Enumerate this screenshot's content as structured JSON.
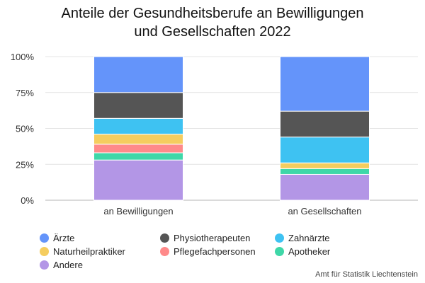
{
  "title_lines": [
    "Anteile der Gesundheitsberufe an Bewilligungen",
    "und Gesellschaften 2022"
  ],
  "source": "Amt für Statistik Liechtenstein",
  "chart_data": {
    "type": "bar",
    "stacked": true,
    "categories": [
      "an Bewilligungen",
      "an Gesellschaften"
    ],
    "ylim": [
      0,
      100
    ],
    "yticks": [
      0,
      25,
      50,
      75,
      100
    ],
    "ytick_labels": [
      "0%",
      "25%",
      "50%",
      "75%",
      "100%"
    ],
    "grid": true,
    "legend_position": "bottom",
    "series": [
      {
        "name": "Andere",
        "color": "#b396e6",
        "values": [
          28,
          18
        ]
      },
      {
        "name": "Apotheker",
        "color": "#3fd7a8",
        "values": [
          5,
          4
        ]
      },
      {
        "name": "Pflegefachpersonen",
        "color": "#ff8a8a",
        "values": [
          6,
          0
        ]
      },
      {
        "name": "Naturheilpraktiker",
        "color": "#f5cd5f",
        "values": [
          7,
          4
        ]
      },
      {
        "name": "Zahnärzte",
        "color": "#3ec2f2",
        "values": [
          11,
          18
        ]
      },
      {
        "name": "Physiotherapeuten",
        "color": "#555555",
        "values": [
          18,
          18
        ]
      },
      {
        "name": "Ärzte",
        "color": "#6494fa",
        "values": [
          25,
          38
        ]
      }
    ]
  },
  "legend": [
    {
      "label": "Ärzte",
      "color": "#6494fa"
    },
    {
      "label": "Physiotherapeuten",
      "color": "#555555"
    },
    {
      "label": "Zahnärzte",
      "color": "#3ec2f2"
    },
    {
      "label": "Naturheilpraktiker",
      "color": "#f5cd5f"
    },
    {
      "label": "Pflegefachpersonen",
      "color": "#ff8a8a"
    },
    {
      "label": "Apotheker",
      "color": "#3fd7a8"
    },
    {
      "label": "Andere",
      "color": "#b396e6"
    }
  ]
}
